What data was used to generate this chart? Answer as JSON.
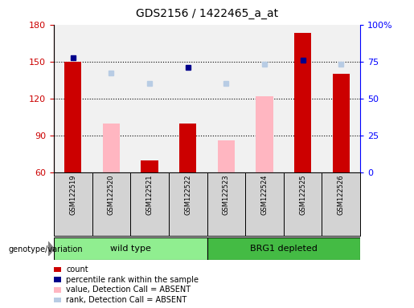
{
  "title": "GDS2156 / 1422465_a_at",
  "samples": [
    "GSM122519",
    "GSM122520",
    "GSM122521",
    "GSM122522",
    "GSM122523",
    "GSM122524",
    "GSM122525",
    "GSM122526"
  ],
  "ylim_left": [
    60,
    180
  ],
  "ylim_right": [
    0,
    100
  ],
  "yticks_left": [
    60,
    90,
    120,
    150,
    180
  ],
  "yticks_right": [
    0,
    25,
    50,
    75,
    100
  ],
  "ytick_labels_right": [
    "0",
    "25",
    "50",
    "75",
    "100%"
  ],
  "red_bar_heights": [
    150,
    null,
    70,
    100,
    null,
    null,
    173,
    140
  ],
  "pink_bar_heights": [
    null,
    100,
    null,
    null,
    86,
    122,
    null,
    null
  ],
  "blue_square_y": [
    153,
    null,
    null,
    145,
    null,
    null,
    151,
    null
  ],
  "blue_square_absent_y": [
    null,
    141,
    132,
    null,
    132,
    148,
    null,
    148
  ],
  "red_color": "#CC0000",
  "pink_color": "#FFB6C1",
  "blue_dark_color": "#00008B",
  "blue_light_color": "#B8CCE4",
  "wt_color": "#90EE90",
  "brg_color": "#44BB44",
  "gray_color": "#D3D3D3",
  "legend_labels": [
    "count",
    "percentile rank within the sample",
    "value, Detection Call = ABSENT",
    "rank, Detection Call = ABSENT"
  ],
  "legend_colors": [
    "#CC0000",
    "#00008B",
    "#FFB6C1",
    "#B8CCE4"
  ]
}
